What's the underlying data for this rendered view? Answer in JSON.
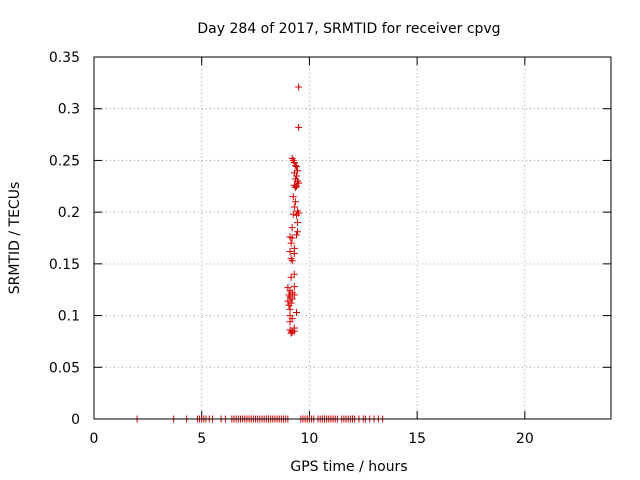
{
  "chart_data": {
    "type": "scatter",
    "title": "Day 284 of 2017, SRMTID for receiver cpvg",
    "xlabel": "GPS time / hours",
    "ylabel": "SRMTID / TECUs",
    "xlim": [
      0,
      24
    ],
    "ylim": [
      0,
      0.35
    ],
    "xticks": [
      0,
      5,
      10,
      15,
      20
    ],
    "yticks": [
      0,
      0.05,
      0.1,
      0.15,
      0.2,
      0.25,
      0.3,
      0.35
    ],
    "xtick_labels": [
      "0",
      "5",
      "10",
      "15",
      "20"
    ],
    "ytick_labels": [
      "0",
      "0.05",
      "0.1",
      "0.15",
      "0.2",
      "0.25",
      "0.3",
      "0.35"
    ],
    "grid": true,
    "marker": "+",
    "color": "#d40000",
    "series": [
      {
        "name": "SRMTID",
        "x": [
          2.0,
          3.7,
          4.3,
          4.8,
          4.9,
          5.0,
          5.1,
          5.2,
          5.35,
          5.5,
          5.9,
          6.1,
          6.4,
          6.5,
          6.6,
          6.7,
          6.8,
          6.9,
          7.0,
          7.1,
          7.2,
          7.3,
          7.4,
          7.5,
          7.6,
          7.7,
          7.8,
          7.9,
          8.0,
          8.1,
          8.2,
          8.3,
          8.4,
          8.5,
          8.6,
          8.7,
          8.8,
          8.9,
          9.0,
          9.6,
          9.7,
          9.8,
          9.9,
          10.0,
          10.1,
          10.2,
          10.4,
          10.5,
          10.6,
          10.7,
          10.8,
          10.9,
          11.0,
          11.1,
          11.2,
          11.3,
          11.5,
          11.6,
          11.7,
          11.8,
          11.9,
          12.0,
          12.1,
          12.3,
          12.5,
          12.6,
          12.8,
          13.0,
          13.2,
          13.4,
          9.5,
          9.5,
          9.2,
          9.25,
          9.3,
          9.35,
          9.4,
          9.45,
          9.3,
          9.4,
          9.35,
          9.45,
          9.5,
          9.3,
          9.4,
          9.35,
          9.25,
          9.35,
          9.3,
          9.45,
          9.5,
          9.4,
          9.25,
          9.45,
          9.2,
          9.45,
          9.4,
          9.1,
          9.2,
          9.15,
          9.3,
          9.1,
          9.3,
          9.15,
          9.2,
          9.3,
          9.15,
          9.3,
          9.0,
          9.1,
          9.2,
          9.05,
          9.1,
          9.2,
          9.3,
          9.0,
          9.15,
          9.05,
          9.1,
          9.1,
          9.2,
          9.4,
          9.1,
          9.3,
          9.1,
          9.2,
          9.15,
          9.3,
          9.2
        ],
        "y": [
          0,
          0,
          0,
          0,
          0,
          0,
          0,
          0,
          0,
          0,
          0,
          0,
          0,
          0,
          0,
          0,
          0,
          0,
          0,
          0,
          0,
          0,
          0,
          0,
          0,
          0,
          0,
          0,
          0,
          0,
          0,
          0,
          0,
          0,
          0,
          0,
          0,
          0,
          0,
          0,
          0,
          0,
          0,
          0,
          0,
          0,
          0,
          0,
          0,
          0,
          0,
          0,
          0,
          0,
          0,
          0,
          0,
          0,
          0,
          0,
          0,
          0,
          0,
          0,
          0,
          0,
          0,
          0,
          0,
          0,
          0.321,
          0.282,
          0.252,
          0.25,
          0.248,
          0.245,
          0.244,
          0.24,
          0.238,
          0.235,
          0.232,
          0.23,
          0.228,
          0.226,
          0.225,
          0.224,
          0.215,
          0.21,
          0.205,
          0.201,
          0.199,
          0.197,
          0.198,
          0.19,
          0.185,
          0.181,
          0.178,
          0.176,
          0.175,
          0.17,
          0.165,
          0.162,
          0.16,
          0.155,
          0.153,
          0.14,
          0.137,
          0.128,
          0.127,
          0.124,
          0.122,
          0.12,
          0.118,
          0.116,
          0.12,
          0.114,
          0.112,
          0.11,
          0.106,
          0.1,
          0.097,
          0.103,
          0.094,
          0.088,
          0.086,
          0.085,
          0.083,
          0.085,
          0.084
        ]
      }
    ]
  }
}
